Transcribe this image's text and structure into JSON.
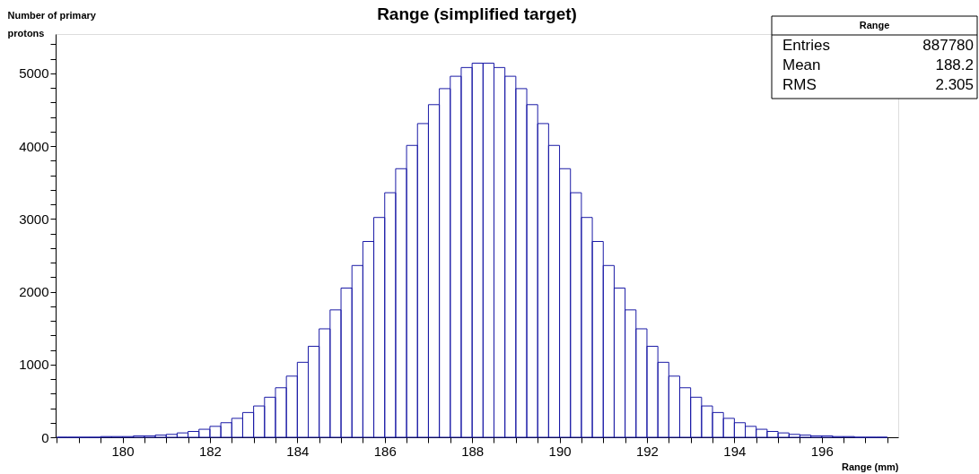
{
  "chart_data": {
    "type": "histogram",
    "title": "Range (simplified target)",
    "xlabel": "Range (mm)",
    "ylabel": "Number of primary protons",
    "bins": [
      178.5,
      178.75,
      179.0,
      179.25,
      179.5,
      179.75,
      180.0,
      180.25,
      180.5,
      180.75,
      181.0,
      181.25,
      181.5,
      181.75,
      182.0,
      182.25,
      182.5,
      182.75,
      183.0,
      183.25,
      183.5,
      183.75,
      184.0,
      184.25,
      184.5,
      184.75,
      185.0,
      185.25,
      185.5,
      185.75,
      186.0,
      186.25,
      186.5,
      186.75,
      187.0,
      187.25,
      187.5,
      187.75,
      188.0,
      188.25,
      188.5,
      188.75,
      189.0,
      189.25,
      189.5,
      189.75,
      190.0,
      190.25,
      190.5,
      190.75,
      191.0,
      191.25,
      191.5,
      191.75,
      192.0,
      192.25,
      192.5,
      192.75,
      193.0,
      193.25,
      193.5,
      193.75,
      194.0,
      194.25,
      194.5,
      194.75,
      195.0,
      195.25,
      195.5,
      195.75,
      196.0,
      196.25,
      196.5,
      196.75,
      197.0,
      197.25,
      197.5
    ],
    "values": [
      0,
      0,
      0,
      0,
      10,
      10,
      10,
      20,
      20,
      30,
      40,
      60,
      80,
      110,
      150,
      200,
      260,
      340,
      430,
      550,
      680,
      840,
      1030,
      1250,
      1490,
      1750,
      2050,
      2360,
      2690,
      3020,
      3360,
      3690,
      4010,
      4310,
      4570,
      4790,
      4960,
      5080,
      5140,
      5140,
      5080,
      4960,
      4790,
      4570,
      4310,
      4010,
      3690,
      3360,
      3020,
      2690,
      2360,
      2050,
      1750,
      1490,
      1250,
      1030,
      840,
      680,
      550,
      430,
      340,
      260,
      200,
      150,
      110,
      80,
      60,
      40,
      30,
      20,
      20,
      10,
      10,
      0,
      0,
      0
    ],
    "color": "#1a1aa6",
    "xlim": [
      178.47,
      197.75
    ],
    "ylim": [
      0,
      5540
    ],
    "xticks": [
      {
        "value": 178.5,
        "label": null
      },
      {
        "value": 179,
        "label": null
      },
      {
        "value": 179.5,
        "label": null
      },
      180,
      {
        "value": 180.5,
        "label": null
      },
      {
        "value": 181,
        "label": null
      },
      {
        "value": 181.5,
        "label": null
      },
      182,
      {
        "value": 182.5,
        "label": null
      },
      {
        "value": 183,
        "label": null
      },
      {
        "value": 183.5,
        "label": null
      },
      184,
      {
        "value": 184.5,
        "label": null
      },
      {
        "value": 185,
        "label": null
      },
      {
        "value": 185.5,
        "label": null
      },
      186,
      {
        "value": 186.5,
        "label": null
      },
      {
        "value": 187,
        "label": null
      },
      {
        "value": 187.5,
        "label": null
      },
      188,
      {
        "value": 188.5,
        "label": null
      },
      {
        "value": 189,
        "label": null
      },
      {
        "value": 189.5,
        "label": null
      },
      190,
      {
        "value": 190.5,
        "label": null
      },
      {
        "value": 191,
        "label": null
      },
      {
        "value": 191.5,
        "label": null
      },
      192,
      {
        "value": 192.5,
        "label": null
      },
      {
        "value": 193,
        "label": null
      },
      {
        "value": 193.5,
        "label": null
      },
      194,
      {
        "value": 194.5,
        "label": null
      },
      {
        "value": 195,
        "label": null
      },
      {
        "value": 195.5,
        "label": null
      },
      196,
      {
        "value": 196.5,
        "label": null
      },
      {
        "value": 197,
        "label": null
      },
      {
        "value": 197.5,
        "label": null
      }
    ],
    "yticks": [
      0,
      {
        "value": 200,
        "label": null
      },
      {
        "value": 400,
        "label": null
      },
      {
        "value": 600,
        "label": null
      },
      {
        "value": 800,
        "label": null
      },
      1000,
      {
        "value": 1200,
        "label": null
      },
      {
        "value": 1400,
        "label": null
      },
      {
        "value": 1600,
        "label": null
      },
      {
        "value": 1800,
        "label": null
      },
      2000,
      {
        "value": 2200,
        "label": null
      },
      {
        "value": 2400,
        "label": null
      },
      {
        "value": 2600,
        "label": null
      },
      {
        "value": 2800,
        "label": null
      },
      3000,
      {
        "value": 3200,
        "label": null
      },
      {
        "value": 3400,
        "label": null
      },
      {
        "value": 3600,
        "label": null
      },
      {
        "value": 3800,
        "label": null
      },
      4000,
      {
        "value": 4200,
        "label": null
      },
      {
        "value": 4400,
        "label": null
      },
      {
        "value": 4600,
        "label": null
      },
      {
        "value": 4800,
        "label": null
      },
      5000,
      {
        "value": 5200,
        "label": null
      },
      {
        "value": 5400,
        "label": null
      }
    ],
    "grid": false,
    "annotations": [
      "Range",
      "Entries",
      "887780",
      "Mean",
      "188.2",
      "RMS",
      "2.305"
    ]
  }
}
